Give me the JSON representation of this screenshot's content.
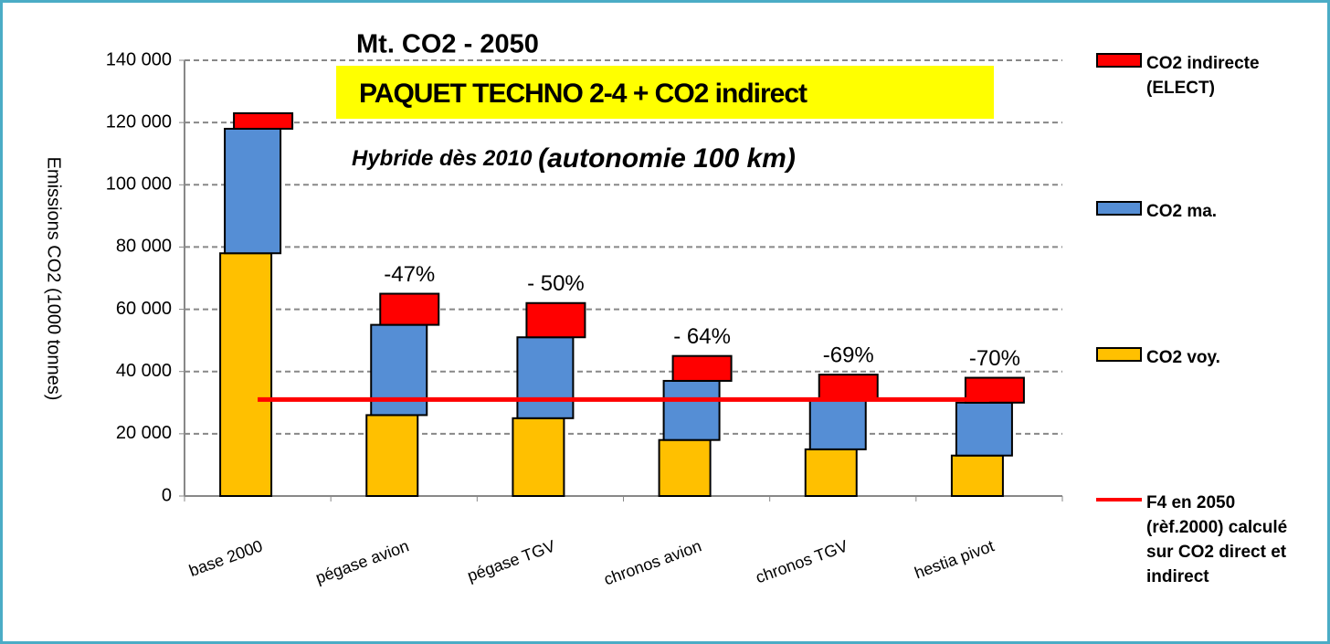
{
  "chart_data": {
    "type": "bar",
    "title": "Mt. CO2 - 2050",
    "subtitle": "PAQUET TECHNO 2-4 + CO2 indirect",
    "annotation": [
      "Hybride dès 2010 ",
      "(autonomie 100 km)"
    ],
    "y_label": "Emissions CO2 (1000 tonnes)",
    "categories": [
      "base 2000",
      "pégase avion",
      "pégase TGV",
      "chronos avion",
      "chronos TGV",
      "hestia pivot"
    ],
    "series": [
      {
        "name": "CO2 voy.",
        "color": "#ffc000",
        "values": [
          78000,
          26000,
          25000,
          18000,
          15000,
          13000
        ]
      },
      {
        "name": "CO2 ma.",
        "color": "#558ed5",
        "values": [
          40000,
          29000,
          26000,
          19000,
          16000,
          17000
        ]
      },
      {
        "name": "CO2 indirecte (ELECT)",
        "color": "#ff0000",
        "values": [
          5000,
          10000,
          11000,
          8000,
          8000,
          8000
        ]
      },
      {
        "name": "F4 en 2050 (rèf.2000) calculé sur CO2 direct et indirect",
        "type": "line",
        "color": "#ff0000",
        "values": [
          31000,
          31000,
          31000,
          31000,
          31000,
          31000
        ]
      }
    ],
    "total_labels": [
      null,
      "-47%",
      "- 50%",
      "- 64%",
      "-69%",
      "-70%"
    ],
    "ylim": [
      0,
      140000
    ],
    "yticks": [
      0,
      {
        "value": 20000,
        "label": "20 000"
      },
      {
        "value": 40000,
        "label": "40 000"
      },
      {
        "value": 60000,
        "label": "60 000"
      },
      {
        "value": 80000,
        "label": "80 000"
      },
      {
        "value": 100000,
        "label": "100 000"
      },
      {
        "value": 120000,
        "label": "120 000"
      },
      {
        "value": 140000,
        "label": "140 000"
      }
    ],
    "grid": true
  }
}
